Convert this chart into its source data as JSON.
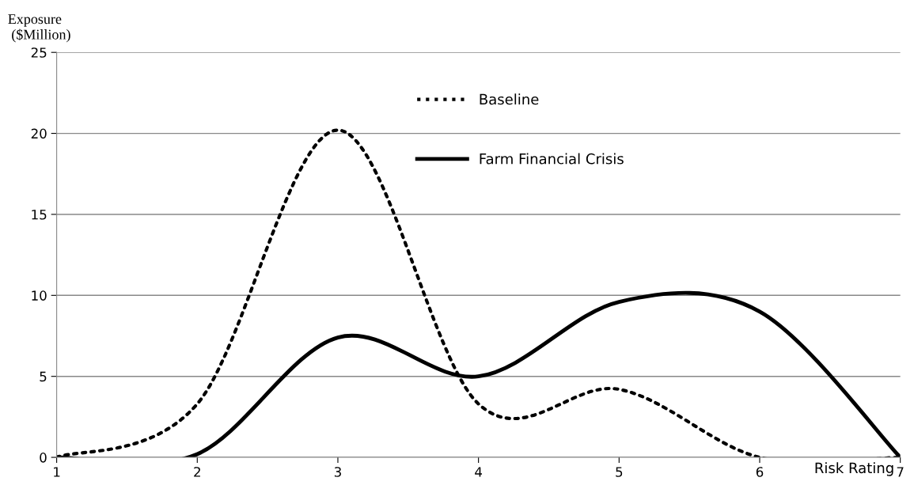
{
  "chart_data": {
    "type": "line",
    "xlabel": "Risk Rating",
    "ylabel": "Exposure\n ($Million)",
    "x": [
      1,
      2,
      3,
      4,
      5,
      6,
      7
    ],
    "series": [
      {
        "name": "Baseline",
        "color": "#000000",
        "line_style": "dotted",
        "values": [
          0,
          3.3,
          20.2,
          3.3,
          4.2,
          0,
          0
        ]
      },
      {
        "name": "Farm Financial Crisis",
        "color": "#000000",
        "line_style": "solid",
        "values": [
          0,
          0.2,
          7.4,
          5.0,
          9.6,
          9.0,
          0
        ]
      }
    ],
    "xlim": [
      1,
      7
    ],
    "xticks": [
      1,
      2,
      3,
      4,
      5,
      6,
      7
    ],
    "ylim": [
      0,
      25
    ],
    "yticks": [
      0,
      5,
      10,
      15,
      20,
      25
    ],
    "grid": "y",
    "legend": "top",
    "marker": "none"
  }
}
